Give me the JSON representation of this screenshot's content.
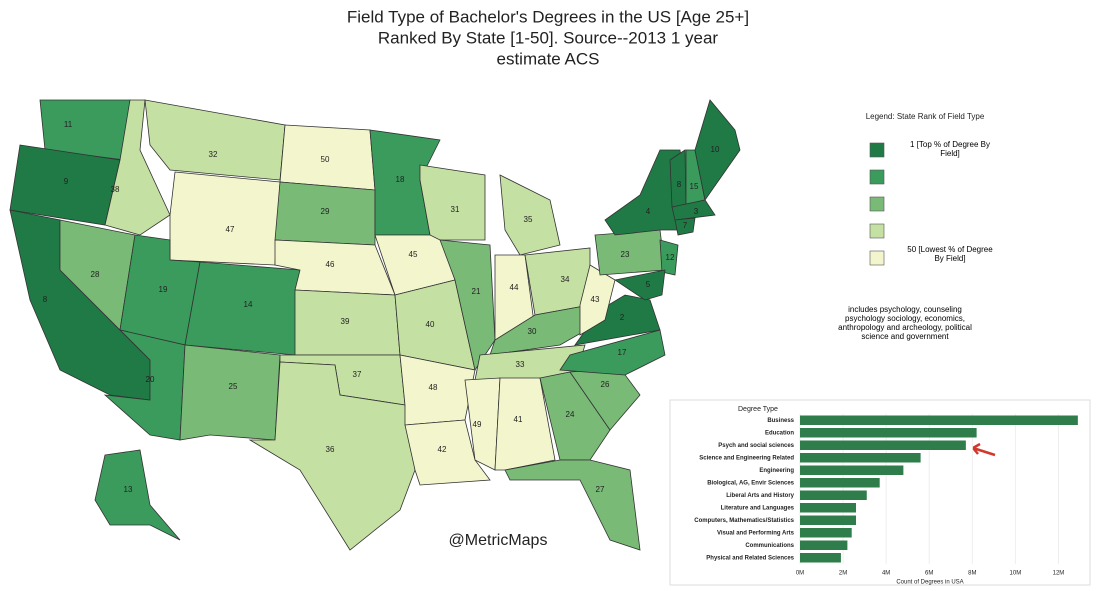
{
  "title": [
    "Field Type of Bachelor's Degrees in the US [Age 25+]",
    "Ranked By State [1-50].  Source--2013 1 year",
    "estimate ACS"
  ],
  "map": {
    "state_ranks": [
      11,
      9,
      8,
      28,
      38,
      32,
      47,
      19,
      14,
      20,
      25,
      50,
      29,
      46,
      39,
      37,
      36,
      18,
      45,
      40,
      48,
      42,
      31,
      21,
      35,
      44,
      34,
      30,
      33,
      49,
      41,
      24,
      27,
      26,
      17,
      2,
      43,
      23,
      4,
      12,
      5,
      8,
      15,
      10,
      3,
      7,
      13
    ],
    "colors": [
      "#1f7a45",
      "#3a9b5c",
      "#78ba76",
      "#c5e0a3",
      "#f3f5cd"
    ]
  },
  "legend": {
    "title": "Legend:  State Rank of Field Type",
    "top_label": "1 [Top % of Degree By Field]",
    "bottom_label": "50 [Lowest % of Degree By Field]"
  },
  "note": "includes psychology, counseling psychology sociology, economics, anthropology and archeology, political science and government",
  "watermark": "@MetricMaps",
  "chart_data": {
    "type": "bar",
    "orientation": "horizontal",
    "category_header": "Degree Type",
    "xlabel": "Count of Degrees in USA",
    "categories": [
      "Business",
      "Education",
      "Psych and social sciences",
      "Science and Engineering Related",
      "Engineering",
      "Biological, AG, Envir Sciences",
      "Liberal Arts and History",
      "Literature and Languages",
      "Computers, Mathematics/Statistics",
      "Visual and Performing Arts",
      "Communications",
      "Physical and Related Sciences"
    ],
    "values": [
      12900000,
      8200000,
      7700000,
      5600000,
      4800000,
      3700000,
      3100000,
      2600000,
      2600000,
      2400000,
      2200000,
      1900000
    ],
    "color": "#2e7d4a",
    "xlim": [
      0,
      13000000
    ],
    "xticks": [
      {
        "value": 0,
        "label": "0M"
      },
      {
        "value": 2000000,
        "label": "2M"
      },
      {
        "value": 4000000,
        "label": "4M"
      },
      {
        "value": 6000000,
        "label": "6M"
      },
      {
        "value": 8000000,
        "label": "8M"
      },
      {
        "value": 10000000,
        "label": "10M"
      },
      {
        "value": 12000000,
        "label": "12M"
      }
    ]
  }
}
